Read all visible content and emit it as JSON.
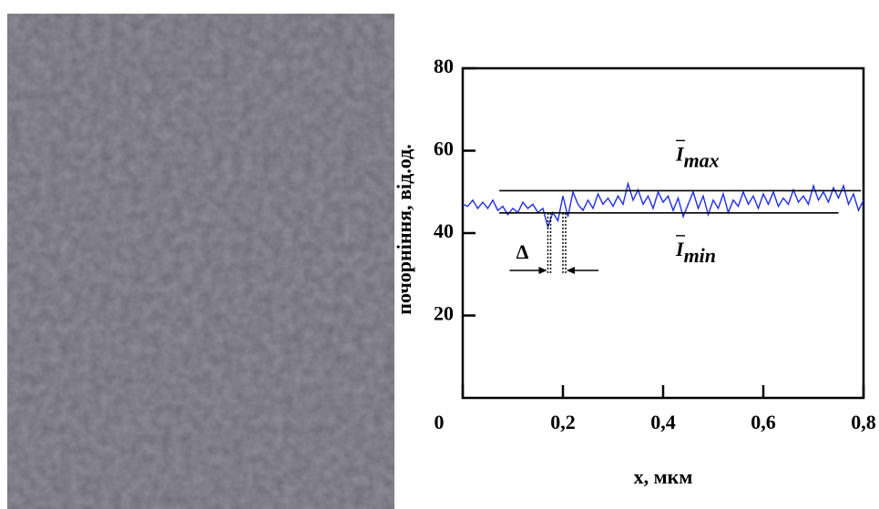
{
  "chart_data": {
    "type": "line",
    "ylabel": "почорніння, від.од.",
    "xlabel": "x, мкм",
    "xlim": [
      0,
      0.8
    ],
    "xticks": [
      0,
      {
        "value": 0.2,
        "label": "0,2"
      },
      {
        "value": 0.4,
        "label": "0,4"
      },
      {
        "value": 0.6,
        "label": "0,6"
      },
      {
        "value": 0.8,
        "label": "0,8"
      }
    ],
    "ylim": [
      0,
      80
    ],
    "yticks": [
      20,
      40,
      60,
      80
    ],
    "x": [
      0,
      0.01,
      0.02,
      0.03,
      0.04,
      0.05,
      0.06,
      0.07,
      0.08,
      0.09,
      0.1,
      0.11,
      0.12,
      0.13,
      0.14,
      0.15,
      0.16,
      0.17,
      0.18,
      0.19,
      0.2,
      0.21,
      0.22,
      0.23,
      0.24,
      0.25,
      0.26,
      0.27,
      0.28,
      0.29,
      0.3,
      0.31,
      0.32,
      0.33,
      0.34,
      0.35,
      0.36,
      0.37,
      0.38,
      0.39,
      0.4,
      0.41,
      0.42,
      0.43,
      0.44,
      0.45,
      0.46,
      0.47,
      0.48,
      0.49,
      0.5,
      0.51,
      0.52,
      0.53,
      0.54,
      0.55,
      0.56,
      0.57,
      0.58,
      0.59,
      0.6,
      0.61,
      0.62,
      0.63,
      0.64,
      0.65,
      0.66,
      0.67,
      0.68,
      0.69,
      0.7,
      0.71,
      0.72,
      0.73,
      0.74,
      0.75,
      0.76,
      0.77,
      0.78,
      0.79,
      0.8
    ],
    "series": [
      {
        "color": "#1f2ee6",
        "values": [
          47,
          46.5,
          48,
          46,
          47.5,
          46,
          48,
          45.5,
          46.5,
          44.5,
          46,
          45,
          47.5,
          46,
          47,
          45,
          46,
          41.5,
          45,
          43,
          49,
          44,
          50,
          47,
          45.5,
          48,
          46,
          49.5,
          47,
          48.5,
          46.5,
          49,
          47,
          52,
          48,
          50.5,
          47,
          49,
          46,
          50,
          47.5,
          49,
          45.5,
          48.5,
          44,
          47,
          50,
          46,
          49,
          44.5,
          48,
          46,
          49.5,
          45,
          48,
          46.5,
          50,
          47,
          49,
          46,
          49.5,
          47,
          50,
          46.5,
          48.5,
          47,
          50.5,
          47.5,
          49,
          47,
          51.5,
          48,
          50,
          47.5,
          51,
          48.5,
          51.5,
          47,
          49.5,
          45.5,
          48
        ]
      }
    ],
    "reference_lines": [
      {
        "symbol": "I",
        "subscript": "max",
        "value": 50.3,
        "x": [
          0.073,
          0.795
        ]
      },
      {
        "symbol": "I",
        "subscript": "min",
        "value": 44.9,
        "x": [
          0.073,
          0.75
        ]
      }
    ],
    "delta": {
      "label": "Δ",
      "x": [
        0.17,
        0.2
      ]
    }
  }
}
